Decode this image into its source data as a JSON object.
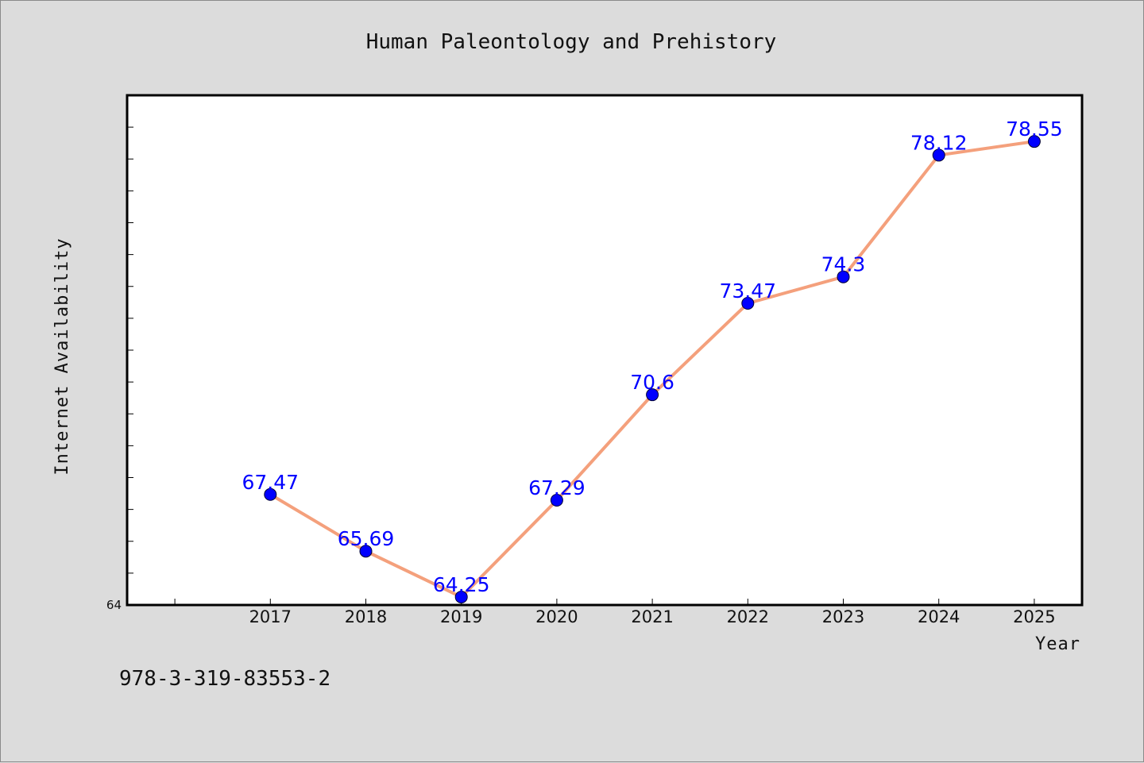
{
  "page": {
    "background": "#dcdcdc",
    "footer_code": "978-3-319-83553-2"
  },
  "chart_data": {
    "type": "line",
    "title": "Human Paleontology and Prehistory",
    "xlabel": "Year",
    "ylabel": "Internet Availability",
    "x": [
      "2017",
      "2018",
      "2019",
      "2020",
      "2021",
      "2022",
      "2023",
      "2024",
      "2025"
    ],
    "series": [
      {
        "values": [
          67.47,
          65.69,
          64.25,
          67.29,
          70.6,
          73.47,
          74.3,
          78.12,
          78.55
        ],
        "data_labels": [
          "67.47",
          "65.69",
          "64.25",
          "67.29",
          "70.6",
          "73.47",
          "74.3",
          "78.12",
          "78.55"
        ]
      }
    ],
    "ylim": [
      64,
      80
    ],
    "xlim": [
      2015.5,
      2025.5
    ],
    "y_tick_labels": [
      {
        "value": 64,
        "label": "64"
      }
    ],
    "y_minor_step": 1,
    "grid": false,
    "legend": "none",
    "colors": {
      "line": "#f4a07c",
      "marker": "#0000ff",
      "marker_edge": "#000033",
      "data_label": "#0000ff",
      "plot_background": "#ffffff",
      "frame": "#000000"
    }
  }
}
